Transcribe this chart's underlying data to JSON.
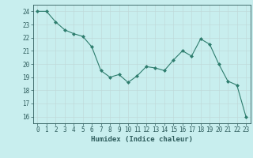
{
  "x": [
    0,
    1,
    2,
    3,
    4,
    5,
    6,
    7,
    8,
    9,
    10,
    11,
    12,
    13,
    14,
    15,
    16,
    17,
    18,
    19,
    20,
    21,
    22,
    23
  ],
  "y": [
    24.0,
    24.0,
    23.2,
    22.6,
    22.3,
    22.1,
    21.3,
    19.5,
    19.0,
    19.2,
    18.6,
    19.1,
    19.8,
    19.7,
    19.5,
    20.3,
    21.0,
    20.6,
    21.9,
    21.5,
    20.0,
    18.7,
    18.4,
    16.0
  ],
  "line_color": "#2e7d6e",
  "marker_color": "#2e7d6e",
  "bg_color": "#c8eeee",
  "grid_color": "#c0dada",
  "text_color": "#2e5c5c",
  "xlabel": "Humidex (Indice chaleur)",
  "ylim": [
    15.5,
    24.5
  ],
  "xlim": [
    -0.5,
    23.5
  ],
  "yticks": [
    16,
    17,
    18,
    19,
    20,
    21,
    22,
    23,
    24
  ],
  "xticks": [
    0,
    1,
    2,
    3,
    4,
    5,
    6,
    7,
    8,
    9,
    10,
    11,
    12,
    13,
    14,
    15,
    16,
    17,
    18,
    19,
    20,
    21,
    22,
    23
  ],
  "tick_fontsize": 5.5,
  "label_fontsize": 6.5
}
